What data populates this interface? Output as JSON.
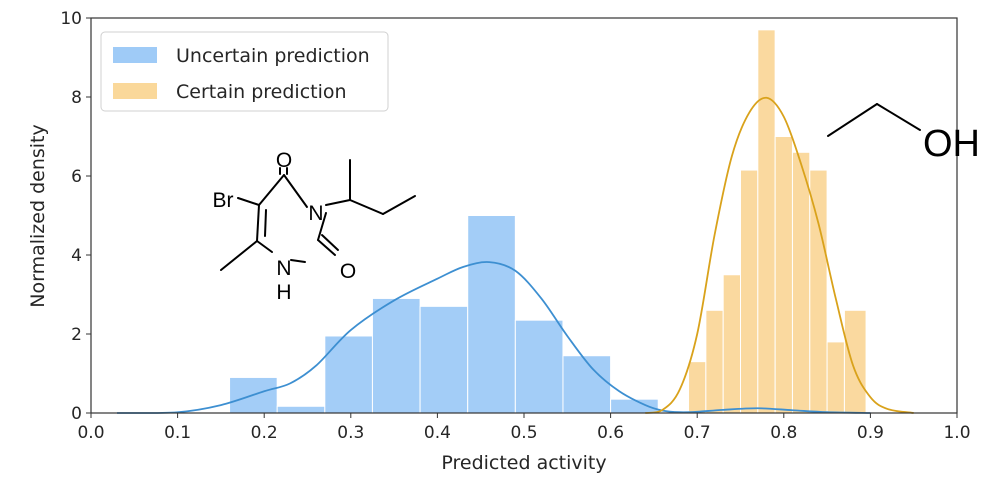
{
  "chart_data": {
    "type": "histogram",
    "xlabel": "Predicted activity",
    "ylabel": "Normalized density",
    "xlim": [
      0.0,
      1.0
    ],
    "ylim": [
      0,
      10
    ],
    "xticks": [
      "0.0",
      "0.1",
      "0.2",
      "0.3",
      "0.4",
      "0.5",
      "0.6",
      "0.7",
      "0.8",
      "0.9",
      "1.0"
    ],
    "yticks": [
      "0",
      "2",
      "4",
      "6",
      "8",
      "10"
    ],
    "grid": false,
    "legend_position": "top-left",
    "series": [
      {
        "name": "Uncertain prediction",
        "color": "#9fcbf7",
        "line_color": "#3d8fd1",
        "bins": [
          {
            "x0": 0.16,
            "x1": 0.215,
            "density": 0.9
          },
          {
            "x0": 0.215,
            "x1": 0.27,
            "density": 0.17
          },
          {
            "x0": 0.27,
            "x1": 0.325,
            "density": 1.95
          },
          {
            "x0": 0.325,
            "x1": 0.38,
            "density": 2.9
          },
          {
            "x0": 0.38,
            "x1": 0.435,
            "density": 2.7
          },
          {
            "x0": 0.435,
            "x1": 0.49,
            "density": 5.0
          },
          {
            "x0": 0.49,
            "x1": 0.545,
            "density": 2.35
          },
          {
            "x0": 0.545,
            "x1": 0.6,
            "density": 1.45
          },
          {
            "x0": 0.6,
            "x1": 0.655,
            "density": 0.35
          },
          {
            "x0": 0.71,
            "x1": 0.765,
            "density": 0.05
          }
        ],
        "kde": {
          "x": [
            0.03,
            0.1,
            0.15,
            0.2,
            0.23,
            0.26,
            0.3,
            0.35,
            0.4,
            0.43,
            0.46,
            0.49,
            0.52,
            0.55,
            0.58,
            0.61,
            0.64,
            0.66,
            0.68,
            0.7,
            0.73,
            0.77,
            0.81,
            0.85,
            0.9
          ],
          "y": [
            0.0,
            0.02,
            0.2,
            0.55,
            0.75,
            1.2,
            2.1,
            2.85,
            3.4,
            3.7,
            3.82,
            3.6,
            2.9,
            1.95,
            1.1,
            0.55,
            0.2,
            0.06,
            0.02,
            0.03,
            0.08,
            0.12,
            0.07,
            0.02,
            0.0
          ]
        }
      },
      {
        "name": "Certain prediction",
        "color": "#fad89a",
        "line_color": "#d9a21b",
        "bins": [
          {
            "x0": 0.69,
            "x1": 0.71,
            "density": 1.3
          },
          {
            "x0": 0.71,
            "x1": 0.73,
            "density": 2.6
          },
          {
            "x0": 0.73,
            "x1": 0.75,
            "density": 3.5
          },
          {
            "x0": 0.75,
            "x1": 0.77,
            "density": 6.15
          },
          {
            "x0": 0.77,
            "x1": 0.79,
            "density": 9.7
          },
          {
            "x0": 0.79,
            "x1": 0.81,
            "density": 7.0
          },
          {
            "x0": 0.81,
            "x1": 0.83,
            "density": 6.6
          },
          {
            "x0": 0.83,
            "x1": 0.85,
            "density": 6.15
          },
          {
            "x0": 0.85,
            "x1": 0.87,
            "density": 1.8
          },
          {
            "x0": 0.87,
            "x1": 0.895,
            "density": 2.6
          }
        ],
        "kde": {
          "x": [
            0.64,
            0.66,
            0.68,
            0.7,
            0.72,
            0.74,
            0.76,
            0.78,
            0.8,
            0.82,
            0.84,
            0.86,
            0.88,
            0.9,
            0.92,
            0.95
          ],
          "y": [
            0.0,
            0.08,
            0.6,
            2.0,
            4.5,
            6.5,
            7.6,
            7.98,
            7.5,
            6.3,
            4.8,
            2.9,
            1.2,
            0.4,
            0.1,
            0.0
          ]
        }
      }
    ],
    "annotations": {
      "molecule_1_labels": [
        "O",
        "Br",
        "N",
        "N",
        "H",
        "O"
      ],
      "molecule_2_labels": [
        "OH"
      ]
    }
  }
}
